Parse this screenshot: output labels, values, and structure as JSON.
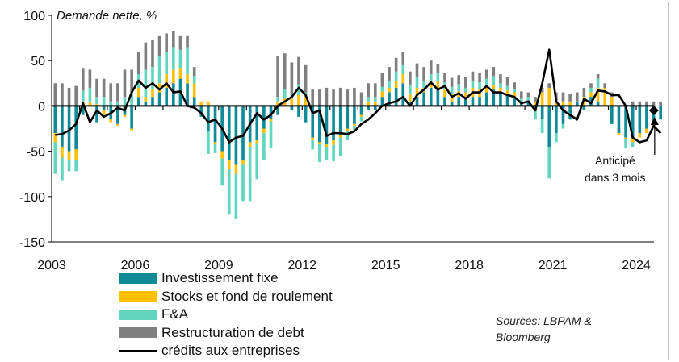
{
  "chart_data": {
    "type": "bar",
    "title": "Demande nette, %",
    "ylim": [
      -150,
      100
    ],
    "yticks": [
      100,
      50,
      0,
      -50,
      -100,
      -150
    ],
    "xticks": [
      "2003",
      "2006",
      "2009",
      "2012",
      "2015",
      "2018",
      "2021",
      "2024"
    ],
    "x_start": 2003.0,
    "x_end": 2024.75,
    "step": 0.25,
    "stacked": true,
    "series": [
      {
        "name": "Investissement fixe",
        "color": "#0f8a96",
        "values": [
          -30,
          -45,
          -50,
          -48,
          -10,
          0,
          -18,
          -5,
          -15,
          -20,
          -10,
          -25,
          10,
          5,
          10,
          15,
          20,
          25,
          30,
          25,
          10,
          -12,
          -28,
          -40,
          -50,
          -60,
          -65,
          -60,
          -40,
          -38,
          -25,
          -15,
          -10,
          0,
          -5,
          -12,
          -18,
          -35,
          -40,
          -42,
          -38,
          -32,
          -25,
          -20,
          -10,
          -5,
          -5,
          10,
          15,
          20,
          25,
          5,
          10,
          15,
          20,
          20,
          10,
          5,
          10,
          10,
          10,
          10,
          15,
          18,
          15,
          12,
          10,
          5,
          5,
          -5,
          -15,
          -45,
          -30,
          -20,
          -15,
          5,
          -5,
          10,
          5,
          0,
          -20,
          -30,
          -35,
          -35,
          -30,
          -25,
          -20,
          -15
        ]
      },
      {
        "name": "Stocks et fond de roulement",
        "color": "#ffc000",
        "values": [
          -10,
          -12,
          -10,
          -12,
          5,
          5,
          2,
          -5,
          -3,
          -2,
          -2,
          -2,
          10,
          5,
          8,
          10,
          15,
          15,
          12,
          10,
          15,
          5,
          5,
          -2,
          -8,
          -10,
          -10,
          -5,
          -5,
          -3,
          -5,
          -2,
          5,
          8,
          8,
          12,
          10,
          -3,
          -2,
          -3,
          -5,
          -3,
          -3,
          -2,
          -2,
          5,
          5,
          6,
          5,
          8,
          10,
          8,
          10,
          5,
          7,
          8,
          8,
          8,
          6,
          5,
          10,
          8,
          5,
          5,
          5,
          5,
          5,
          0,
          0,
          5,
          15,
          20,
          5,
          5,
          5,
          0,
          10,
          5,
          15,
          20,
          10,
          -2,
          -2,
          -5,
          -5,
          -5,
          -2,
          0
        ]
      },
      {
        "name": "F&A",
        "color": "#5fd6bd",
        "values": [
          -35,
          -25,
          -12,
          -12,
          12,
          15,
          8,
          10,
          5,
          5,
          10,
          15,
          15,
          30,
          25,
          30,
          25,
          25,
          20,
          30,
          8,
          0,
          -25,
          -10,
          -30,
          -50,
          -50,
          -40,
          -60,
          -40,
          -30,
          -30,
          5,
          10,
          5,
          12,
          5,
          -10,
          -20,
          -15,
          -18,
          -20,
          -10,
          -5,
          -5,
          5,
          5,
          5,
          8,
          10,
          10,
          10,
          12,
          8,
          8,
          8,
          8,
          8,
          8,
          5,
          8,
          8,
          10,
          10,
          5,
          5,
          3,
          3,
          5,
          -10,
          -15,
          -35,
          -10,
          -5,
          0,
          0,
          0,
          5,
          10,
          0,
          0,
          0,
          -10,
          -5,
          0,
          0,
          0,
          0
        ]
      },
      {
        "name": "Restructuration de debt",
        "color": "#7f7f7f",
        "values": [
          25,
          25,
          20,
          22,
          25,
          20,
          20,
          20,
          20,
          20,
          30,
          25,
          25,
          30,
          30,
          22,
          20,
          18,
          15,
          12,
          10,
          0,
          0,
          0,
          0,
          0,
          0,
          0,
          0,
          0,
          0,
          0,
          45,
          40,
          35,
          30,
          30,
          18,
          18,
          20,
          18,
          20,
          18,
          20,
          15,
          15,
          15,
          15,
          15,
          15,
          15,
          15,
          15,
          15,
          15,
          10,
          10,
          10,
          10,
          12,
          10,
          10,
          10,
          10,
          10,
          10,
          8,
          8,
          5,
          5,
          5,
          5,
          10,
          10,
          8,
          10,
          10,
          5,
          5,
          5,
          5,
          0,
          0,
          5,
          5,
          5,
          5,
          5
        ]
      },
      {
        "name": "crédits aux entreprises",
        "color": "#000000",
        "kind": "line",
        "values": [
          -32,
          -31,
          -27,
          -20,
          3,
          -18,
          -5,
          -12,
          -8,
          -2,
          -5,
          15,
          28,
          20,
          25,
          18,
          25,
          15,
          16,
          0,
          -2,
          -8,
          -18,
          -15,
          -25,
          -40,
          -35,
          -33,
          -20,
          -8,
          -15,
          -10,
          0,
          5,
          10,
          20,
          12,
          -8,
          -5,
          -33,
          -30,
          -30,
          -31,
          -28,
          -20,
          -15,
          -8,
          0,
          3,
          5,
          10,
          0,
          12,
          18,
          26,
          18,
          22,
          10,
          14,
          8,
          15,
          15,
          22,
          15,
          15,
          12,
          10,
          3,
          5,
          -5,
          25,
          62,
          5,
          -5,
          -10,
          -15,
          8,
          3,
          17,
          16,
          12,
          12,
          0,
          -35,
          -40,
          -38,
          -22,
          -30
        ]
      }
    ],
    "annotation": {
      "text_line1": "Anticipé",
      "text_line2": "dans 3 mois",
      "marker_value": -5
    }
  },
  "legend": [
    {
      "label": "Investissement fixe",
      "color": "#0f8a96",
      "kind": "box"
    },
    {
      "label": "Stocks et fond de roulement",
      "color": "#ffc000",
      "kind": "box"
    },
    {
      "label": "F&A",
      "color": "#5fd6bd",
      "kind": "box"
    },
    {
      "label": "Restructuration de debt",
      "color": "#7f7f7f",
      "kind": "box"
    },
    {
      "label": "crédits aux entreprises",
      "color": "#000000",
      "kind": "line"
    }
  ],
  "source": {
    "line1": "Sources: LBPAM &",
    "line2": "Bloomberg"
  }
}
